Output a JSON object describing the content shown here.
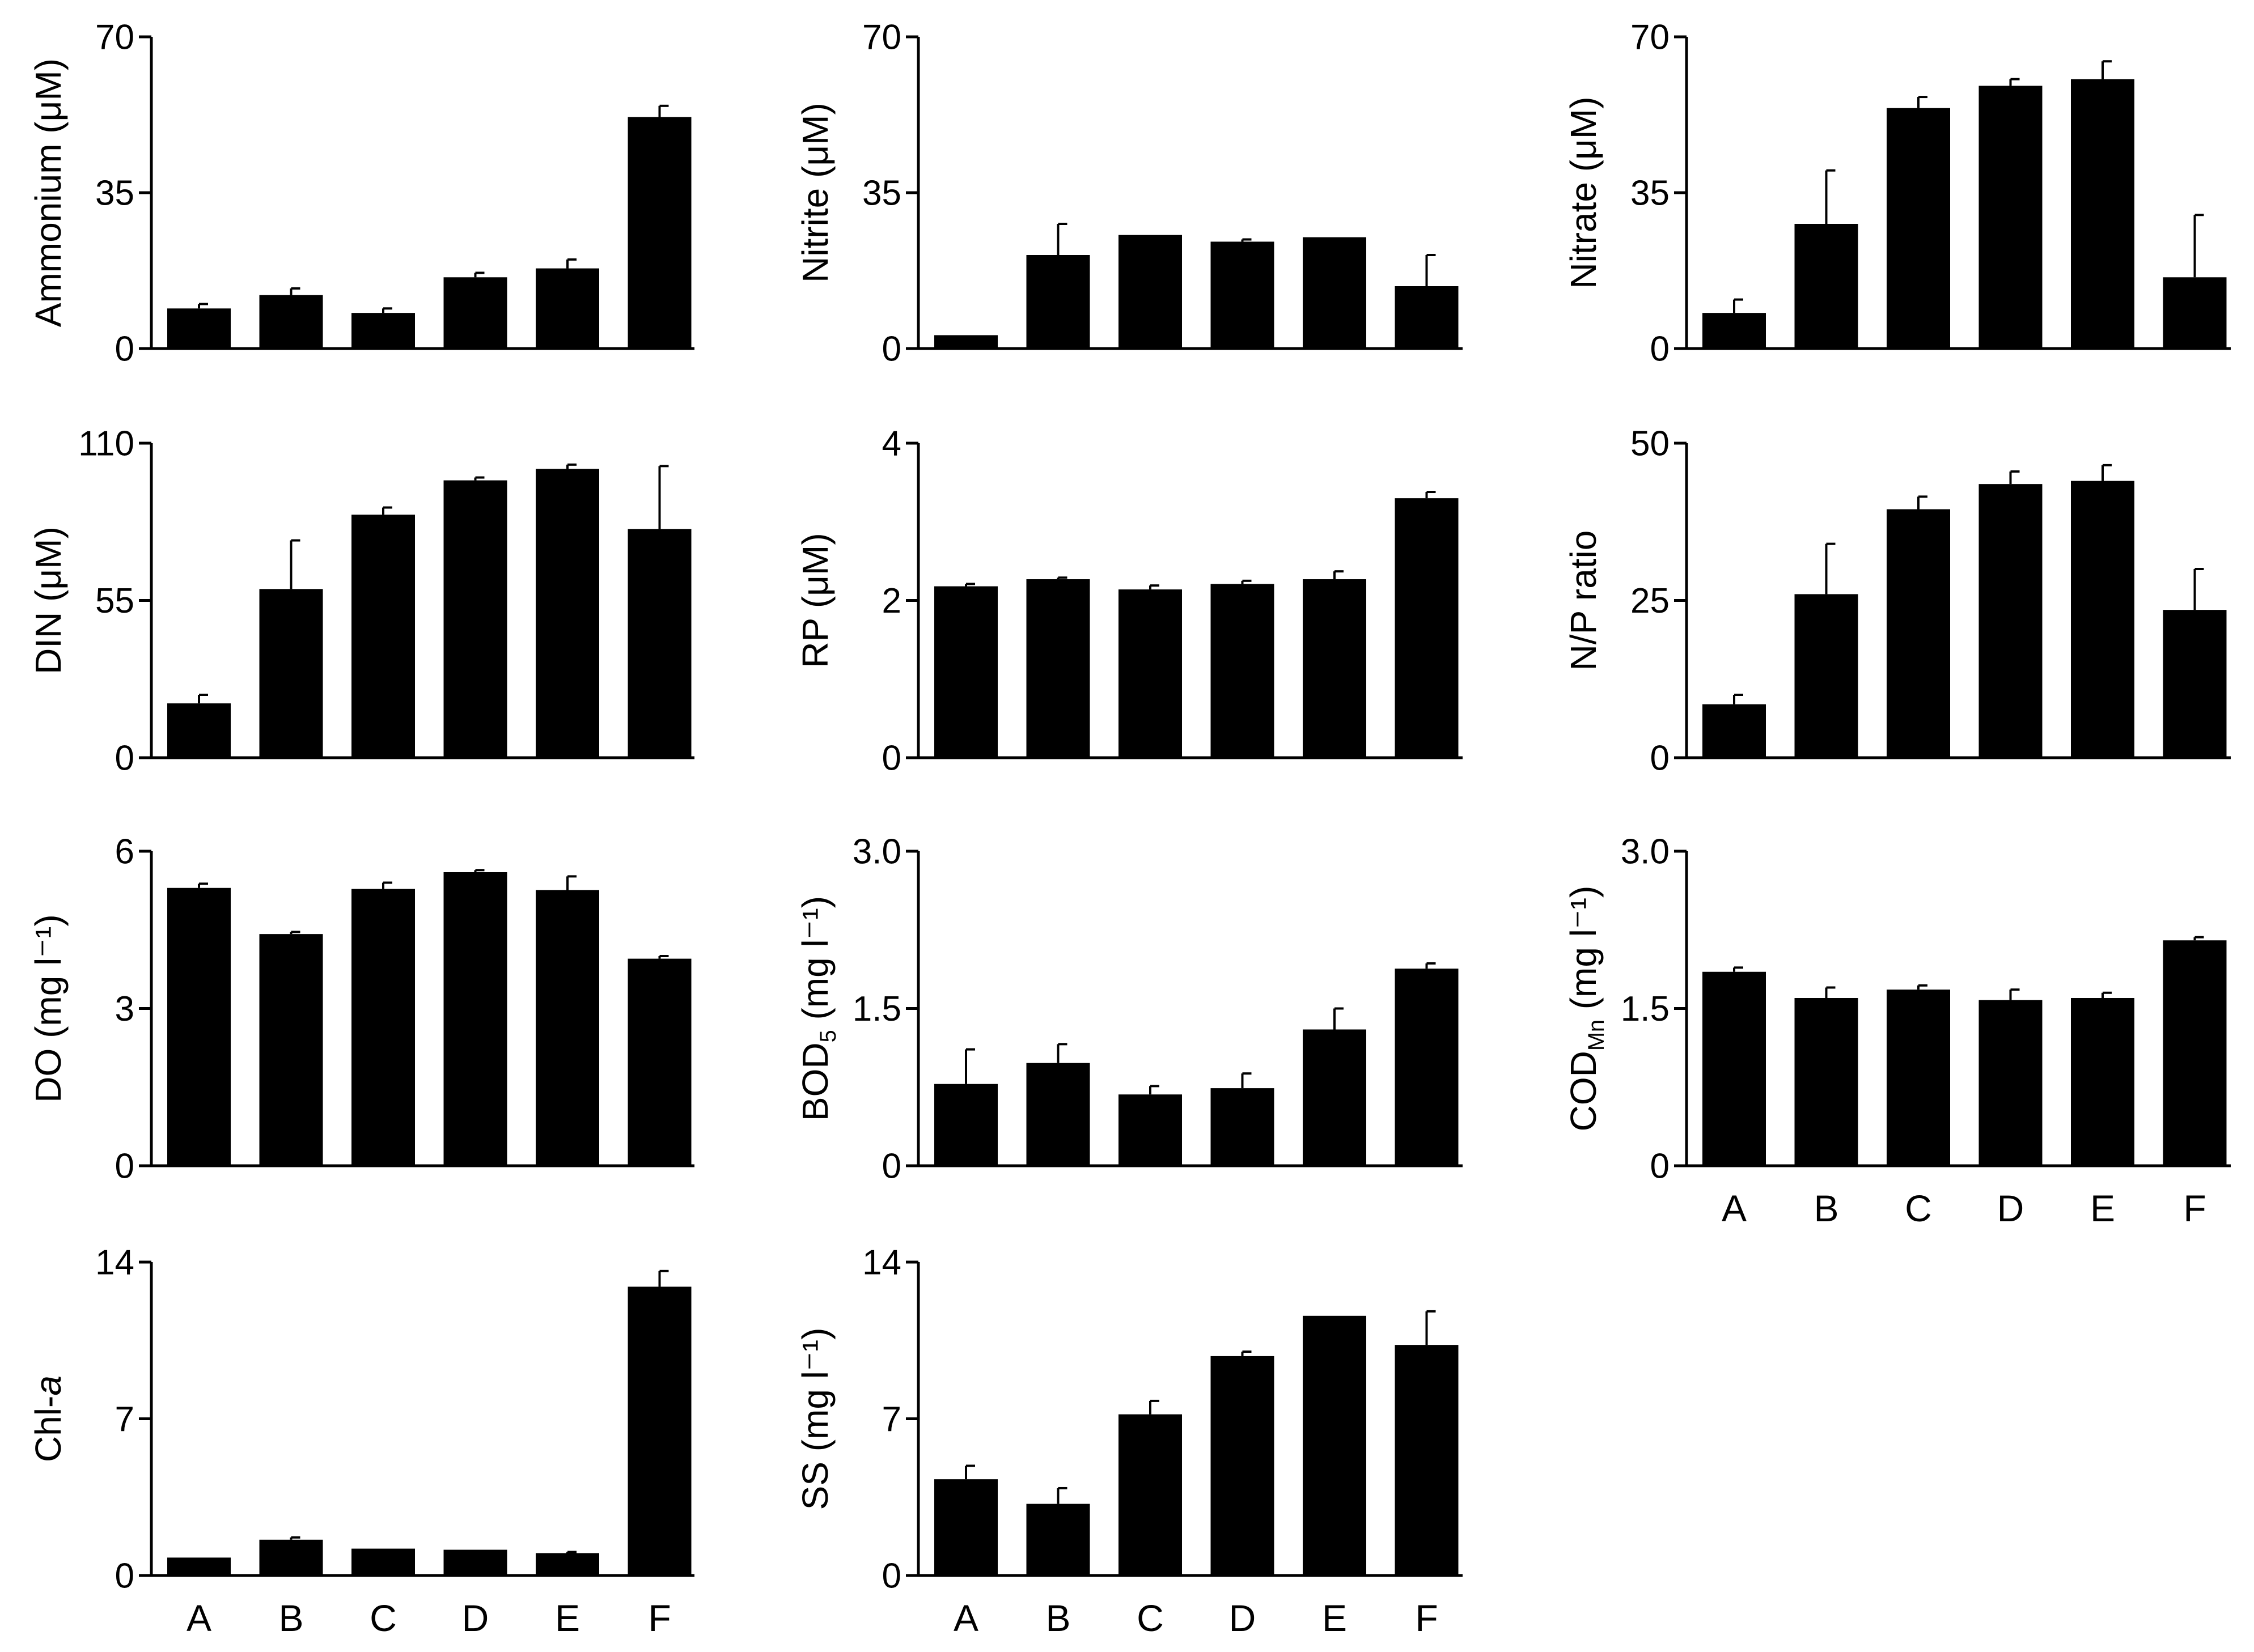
{
  "figure": {
    "categories": [
      "A",
      "B",
      "C",
      "D",
      "E",
      "F"
    ],
    "bar_color": "#000000"
  },
  "chart_data": [
    {
      "id": "ammonium",
      "type": "bar",
      "ylabel": "Ammonium (μM)",
      "ylim": [
        0,
        70
      ],
      "yticks": [
        "0",
        "35",
        "70"
      ],
      "categories": [
        "A",
        "B",
        "C",
        "D",
        "E",
        "F"
      ],
      "values": [
        9,
        12,
        8,
        16,
        18,
        52
      ],
      "errors": [
        1,
        1.5,
        1,
        1,
        2,
        2.5
      ]
    },
    {
      "id": "nitrite",
      "type": "bar",
      "ylabel": "Nitrite (μM)",
      "ylim": [
        0,
        70
      ],
      "yticks": [
        "0",
        "35",
        "70"
      ],
      "categories": [
        "A",
        "B",
        "C",
        "D",
        "E",
        "F"
      ],
      "values": [
        3,
        21,
        25.5,
        24,
        25,
        14
      ],
      "errors": [
        0,
        7,
        0,
        0.5,
        0,
        7
      ]
    },
    {
      "id": "nitrate",
      "type": "bar",
      "ylabel": "Nitrate (μM)",
      "ylim": [
        0,
        70
      ],
      "yticks": [
        "0",
        "35",
        "70"
      ],
      "categories": [
        "A",
        "B",
        "C",
        "D",
        "E",
        "F"
      ],
      "values": [
        8,
        28,
        54,
        59,
        60.5,
        16
      ],
      "errors": [
        3,
        12,
        2.5,
        1.5,
        4,
        14
      ]
    },
    {
      "id": "din",
      "type": "bar",
      "ylabel": "DIN (μM)",
      "ylim": [
        0,
        110
      ],
      "yticks": [
        "0",
        "55",
        "110"
      ],
      "categories": [
        "A",
        "B",
        "C",
        "D",
        "E",
        "F"
      ],
      "values": [
        19,
        59,
        85,
        97,
        101,
        80
      ],
      "errors": [
        3,
        17,
        2.5,
        1,
        1.5,
        22
      ]
    },
    {
      "id": "rp",
      "type": "bar",
      "ylabel": "RP (μM)",
      "ylim": [
        0,
        4
      ],
      "yticks": [
        "0",
        "2",
        "4"
      ],
      "categories": [
        "A",
        "B",
        "C",
        "D",
        "E",
        "F"
      ],
      "values": [
        2.18,
        2.27,
        2.14,
        2.21,
        2.27,
        3.3
      ],
      "errors": [
        0.03,
        0.02,
        0.05,
        0.04,
        0.1,
        0.08
      ]
    },
    {
      "id": "np_ratio",
      "type": "bar",
      "ylabel": "N/P ratio",
      "ylim": [
        0,
        50
      ],
      "yticks": [
        "0",
        "25",
        "50"
      ],
      "categories": [
        "A",
        "B",
        "C",
        "D",
        "E",
        "F"
      ],
      "values": [
        8.5,
        26,
        39.5,
        43.5,
        44,
        23.5
      ],
      "errors": [
        1.5,
        8,
        2,
        2,
        2.5,
        6.5
      ]
    },
    {
      "id": "do",
      "type": "bar",
      "ylabel": "DO (mg l⁻¹)",
      "ylim": [
        0,
        6
      ],
      "yticks": [
        "0",
        "3",
        "6"
      ],
      "categories": [
        "A",
        "B",
        "C",
        "D",
        "E",
        "F"
      ],
      "values": [
        5.3,
        4.42,
        5.28,
        5.6,
        5.26,
        3.95
      ],
      "errors": [
        0.08,
        0.04,
        0.12,
        0.04,
        0.26,
        0.05
      ]
    },
    {
      "id": "bod5",
      "type": "bar",
      "ylabel": "BOD",
      "ylabel_sub": "5",
      "ylabel_suffix": " (mg l⁻¹)",
      "ylim": [
        0,
        3.0
      ],
      "yticks": [
        "0",
        "1.5",
        "3.0"
      ],
      "categories": [
        "A",
        "B",
        "C",
        "D",
        "E",
        "F"
      ],
      "values": [
        0.78,
        0.98,
        0.68,
        0.74,
        1.3,
        1.88
      ],
      "errors": [
        0.33,
        0.18,
        0.08,
        0.14,
        0.2,
        0.05
      ]
    },
    {
      "id": "codmn",
      "type": "bar",
      "ylabel": "COD",
      "ylabel_sub": "Mn",
      "ylabel_suffix": " (mg l⁻¹)",
      "ylim": [
        0,
        3.0
      ],
      "yticks": [
        "0",
        "1.5",
        "3.0"
      ],
      "categories": [
        "A",
        "B",
        "C",
        "D",
        "E",
        "F"
      ],
      "values": [
        1.85,
        1.6,
        1.68,
        1.58,
        1.6,
        2.15
      ],
      "errors": [
        0.04,
        0.1,
        0.04,
        0.1,
        0.05,
        0.03
      ]
    },
    {
      "id": "chla",
      "type": "bar",
      "ylabel": "Chl-",
      "ylabel_italic": "a",
      "ylim": [
        0,
        14
      ],
      "yticks": [
        "0",
        "7",
        "14"
      ],
      "categories": [
        "A",
        "B",
        "C",
        "D",
        "E",
        "F"
      ],
      "values": [
        0.8,
        1.6,
        1.2,
        1.15,
        1.0,
        12.9
      ],
      "errors": [
        0,
        0.1,
        0,
        0,
        0.05,
        0.7
      ]
    },
    {
      "id": "ss",
      "type": "bar",
      "ylabel": "SS (mg l⁻¹)",
      "ylim": [
        0,
        14
      ],
      "yticks": [
        "0",
        "7",
        "14"
      ],
      "categories": [
        "A",
        "B",
        "C",
        "D",
        "E",
        "F"
      ],
      "values": [
        4.3,
        3.2,
        7.2,
        9.8,
        11.6,
        10.3
      ],
      "errors": [
        0.6,
        0.7,
        0.6,
        0.2,
        0,
        1.5
      ]
    }
  ]
}
